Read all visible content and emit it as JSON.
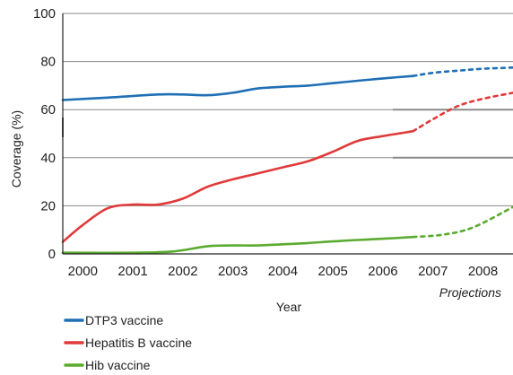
{
  "chart_data": {
    "type": "line",
    "title": "",
    "xlabel": "Year",
    "ylabel": "Coverage (%)",
    "ylim": [
      0,
      100
    ],
    "y_ticks": [
      "0",
      "20",
      "40",
      "60",
      "80",
      "100"
    ],
    "x_ticks": [
      "2000",
      "2001",
      "2002",
      "2003",
      "2004",
      "2005",
      "2006",
      "2007",
      "2008"
    ],
    "x_range": [
      1999.6,
      2008.6
    ],
    "projection_label": "Projections",
    "projection_start": 2006.6,
    "grid": true,
    "legend_position": "bottom-left",
    "series": [
      {
        "name": "DTP3 vaccine",
        "color": "#1f6fb5",
        "points": [
          [
            1999.6,
            64
          ],
          [
            2000.5,
            65
          ],
          [
            2001.5,
            66.3
          ],
          [
            2002.0,
            66.3
          ],
          [
            2002.5,
            66
          ],
          [
            2003.0,
            67
          ],
          [
            2003.5,
            68.8
          ],
          [
            2004.0,
            69.5
          ],
          [
            2004.5,
            70
          ],
          [
            2005.0,
            71
          ],
          [
            2005.5,
            72
          ],
          [
            2006.0,
            73
          ],
          [
            2006.6,
            74
          ]
        ],
        "projection": [
          [
            2006.6,
            74
          ],
          [
            2007.0,
            75.3
          ],
          [
            2007.5,
            76.2
          ],
          [
            2008.0,
            77
          ],
          [
            2008.6,
            77.5
          ]
        ]
      },
      {
        "name": "Hepatitis B vaccine",
        "color": "#e03a3a",
        "points": [
          [
            1999.6,
            5
          ],
          [
            2000.0,
            12
          ],
          [
            2000.5,
            19
          ],
          [
            2001.0,
            20.5
          ],
          [
            2001.5,
            20.5
          ],
          [
            2002.0,
            23
          ],
          [
            2002.5,
            28
          ],
          [
            2003.0,
            31
          ],
          [
            2003.5,
            33.5
          ],
          [
            2004.0,
            36
          ],
          [
            2004.5,
            38.5
          ],
          [
            2005.0,
            42.5
          ],
          [
            2005.5,
            47
          ],
          [
            2006.0,
            49
          ],
          [
            2006.6,
            51
          ]
        ],
        "projection": [
          [
            2006.6,
            51
          ],
          [
            2007.0,
            56
          ],
          [
            2007.5,
            61.5
          ],
          [
            2008.0,
            64.5
          ],
          [
            2008.6,
            67
          ]
        ]
      },
      {
        "name": "Hib vaccine",
        "color": "#5aab2f",
        "points": [
          [
            1999.6,
            0.5
          ],
          [
            2001.0,
            0.5
          ],
          [
            2001.8,
            1
          ],
          [
            2002.5,
            3.2
          ],
          [
            2003.0,
            3.5
          ],
          [
            2003.5,
            3.5
          ],
          [
            2004.0,
            4
          ],
          [
            2004.5,
            4.5
          ],
          [
            2005.0,
            5.2
          ],
          [
            2005.5,
            5.8
          ],
          [
            2006.0,
            6.3
          ],
          [
            2006.6,
            7
          ]
        ],
        "projection": [
          [
            2006.6,
            7
          ],
          [
            2007.2,
            8
          ],
          [
            2007.8,
            11
          ],
          [
            2008.6,
            19.5
          ]
        ]
      }
    ]
  }
}
